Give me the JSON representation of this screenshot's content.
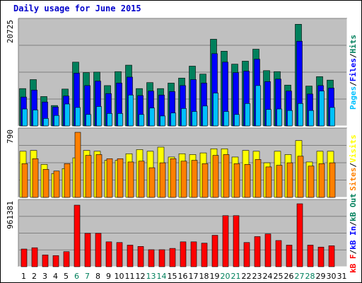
{
  "title": "Daily usage for June 2015",
  "colors": {
    "panel_bg": "#c0c0c0",
    "hits": "#00805c",
    "files": "#0000ff",
    "pages": "#00c0ff",
    "visits": "#ffff00",
    "sites": "#ff8000",
    "kbytes": "#ff0000",
    "weekend": "#00805c",
    "weekday": "#000000",
    "in_label": "#0000ff",
    "out_label": "#00805c"
  },
  "chart_data": [
    {
      "type": "bar",
      "title": "Daily usage for June 2015",
      "y_max_label": "20725",
      "ylim": [
        0,
        20725
      ],
      "right_labels": [
        {
          "text": "Pages",
          "color": "#00c0ff"
        },
        {
          "text": "/",
          "color": "#000000"
        },
        {
          "text": "Files",
          "color": "#0000ff"
        },
        {
          "text": "/",
          "color": "#000000"
        },
        {
          "text": "Hits",
          "color": "#00805c"
        }
      ],
      "categories": [
        "1",
        "2",
        "3",
        "4",
        "5",
        "6",
        "7",
        "8",
        "9",
        "10",
        "11",
        "12",
        "13",
        "14",
        "15",
        "16",
        "17",
        "18",
        "19",
        "20",
        "21",
        "22",
        "23",
        "24",
        "25",
        "26",
        "27",
        "28",
        "29",
        "30",
        "31"
      ],
      "series": [
        {
          "name": "Hits",
          "values": [
            7500,
            9300,
            5900,
            4100,
            7400,
            12800,
            10700,
            10800,
            8100,
            10900,
            12200,
            7500,
            8700,
            7500,
            8600,
            9600,
            12000,
            10400,
            17400,
            15000,
            12400,
            13000,
            15400,
            11100,
            10900,
            8200,
            20400,
            8000,
            9900,
            9200,
            0
          ]
        },
        {
          "name": "Files",
          "values": [
            5800,
            7200,
            4800,
            3800,
            6000,
            10600,
            8100,
            9000,
            6500,
            8600,
            9800,
            6100,
            7000,
            6200,
            6900,
            8100,
            9300,
            8600,
            14500,
            12800,
            10700,
            11000,
            13400,
            8900,
            9400,
            7000,
            17000,
            6400,
            8100,
            7600,
            0
          ]
        },
        {
          "name": "Pages",
          "values": [
            3400,
            3200,
            1500,
            2100,
            4400,
            3700,
            2300,
            3900,
            2500,
            2500,
            6200,
            2300,
            3600,
            2000,
            2600,
            3500,
            2900,
            4000,
            6600,
            2900,
            2300,
            4500,
            8100,
            3300,
            3400,
            3100,
            4500,
            3100,
            7000,
            3700,
            0
          ]
        }
      ]
    },
    {
      "type": "bar",
      "y_max_label": "790",
      "ylim": [
        0,
        790
      ],
      "right_labels": [
        {
          "text": "Sites",
          "color": "#ff8000"
        },
        {
          "text": "/",
          "color": "#000000"
        },
        {
          "text": "Visits",
          "color": "#ffff00"
        }
      ],
      "series": [
        {
          "name": "Visits",
          "values": [
            560,
            570,
            400,
            290,
            350,
            480,
            570,
            560,
            450,
            450,
            530,
            580,
            560,
            610,
            490,
            530,
            520,
            540,
            590,
            590,
            490,
            570,
            560,
            420,
            560,
            520,
            690,
            430,
            560,
            560,
            0
          ]
        },
        {
          "name": "Sites",
          "values": [
            410,
            470,
            340,
            320,
            410,
            790,
            510,
            520,
            470,
            470,
            430,
            440,
            360,
            420,
            470,
            440,
            450,
            410,
            510,
            520,
            410,
            400,
            460,
            370,
            390,
            420,
            500,
            380,
            410,
            420,
            0
          ]
        }
      ]
    },
    {
      "type": "bar",
      "y_max_label": "961381",
      "ylim": [
        0,
        961381
      ],
      "right_labels": [
        {
          "text": "kB F",
          "color": "#ff0000"
        },
        {
          "text": "/",
          "color": "#000000"
        },
        {
          "text": "kB In",
          "color": "#0000ff"
        },
        {
          "text": "/",
          "color": "#000000"
        },
        {
          "text": "kB Out",
          "color": "#00805c"
        }
      ],
      "series": [
        {
          "name": "kB F",
          "values": [
            270000,
            290000,
            180000,
            170000,
            230000,
            940000,
            510000,
            510000,
            380000,
            370000,
            330000,
            310000,
            260000,
            260000,
            280000,
            380000,
            380000,
            360000,
            480000,
            780000,
            780000,
            370000,
            460000,
            500000,
            400000,
            330000,
            961381,
            330000,
            300000,
            320000,
            0
          ]
        }
      ]
    }
  ],
  "weekend_days": [
    6,
    7,
    13,
    14,
    20,
    21,
    27,
    28
  ]
}
